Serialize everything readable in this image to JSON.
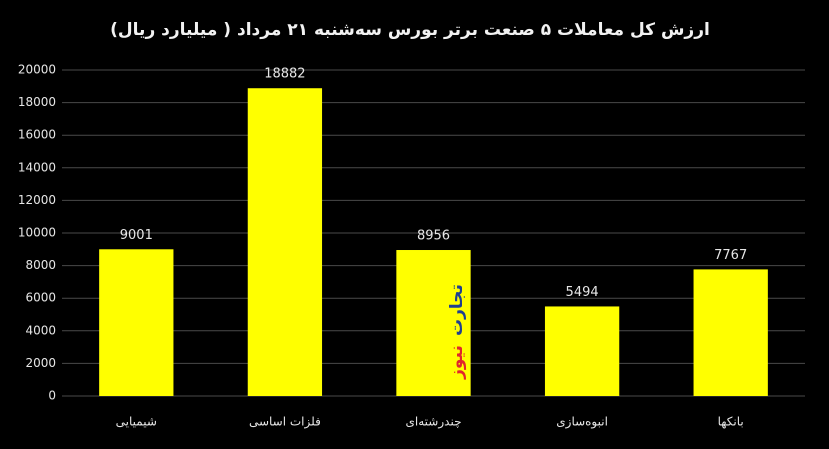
{
  "chart_data": {
    "type": "bar",
    "title": "ارزش کل معاملات ۵ صنعت برتر بورس سه‌شنبه ۲۱ مرداد ( میلیارد ریال)",
    "categories": [
      "شیمیایی",
      "فلزات اساسی",
      "چندرشته‌ای",
      "انبوه‌سازی",
      "بانکها"
    ],
    "values": [
      9001,
      18882,
      8956,
      5494,
      7767
    ],
    "color": "#ffff00",
    "ylim": [
      0,
      20000
    ],
    "yticks": [
      0,
      2000,
      4000,
      6000,
      8000,
      10000,
      12000,
      14000,
      16000,
      18000,
      20000
    ],
    "grid": true,
    "watermark": [
      "تجارت",
      "نیوز"
    ]
  }
}
